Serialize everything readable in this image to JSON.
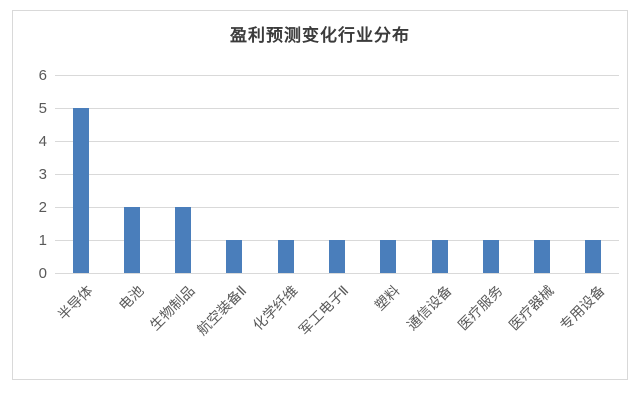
{
  "chart_data": {
    "type": "bar",
    "title": "盈利预测变化行业分布",
    "categories": [
      "半导体",
      "电池",
      "生物制品",
      "航空装备Ⅱ",
      "化学纤维",
      "军工电子Ⅱ",
      "塑料",
      "通信设备",
      "医疗服务",
      "医疗器械",
      "专用设备"
    ],
    "values": [
      5,
      2,
      2,
      1,
      1,
      1,
      1,
      1,
      1,
      1,
      1
    ],
    "xlabel": "",
    "ylabel": "",
    "ylim": [
      0,
      6
    ],
    "yticks": [
      0,
      1,
      2,
      3,
      4,
      5,
      6
    ],
    "grid": true,
    "legend": false,
    "colors": {
      "bar": "#4a7ebb",
      "gridline": "#d9d9d9",
      "chart_border": "#d9d9d9",
      "axis_text": "#595959",
      "title_text": "#3b3b3b"
    }
  }
}
